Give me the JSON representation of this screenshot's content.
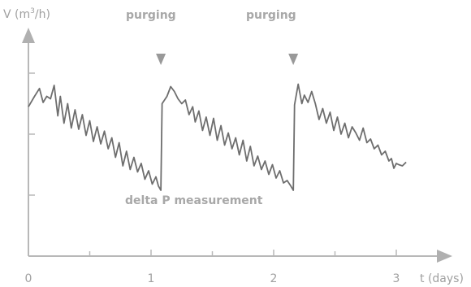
{
  "chart_data": {
    "type": "line",
    "title": "",
    "xlabel": "t (days)",
    "ylabel_prefix": "V (m",
    "ylabel_superscript": "3",
    "ylabel_suffix": "/h)",
    "xlim": [
      0,
      3.6
    ],
    "ylim": [
      0,
      4.3
    ],
    "x_ticks": [
      {
        "value": 0,
        "label": "0"
      },
      {
        "value": 1,
        "label": "1"
      },
      {
        "value": 2,
        "label": "2"
      },
      {
        "value": 3,
        "label": "3"
      }
    ],
    "x_minor_ticks": [
      0.5,
      1.5,
      2.5
    ],
    "y_ticks": [
      1,
      2,
      3
    ],
    "grid": false,
    "series": [
      {
        "values": [
          [
            0.0,
            2.45
          ],
          [
            0.05,
            2.62
          ],
          [
            0.09,
            2.75
          ],
          [
            0.12,
            2.52
          ],
          [
            0.15,
            2.62
          ],
          [
            0.18,
            2.58
          ],
          [
            0.21,
            2.8
          ],
          [
            0.24,
            2.3
          ],
          [
            0.26,
            2.62
          ],
          [
            0.29,
            2.18
          ],
          [
            0.32,
            2.5
          ],
          [
            0.35,
            2.1
          ],
          [
            0.38,
            2.4
          ],
          [
            0.41,
            2.08
          ],
          [
            0.44,
            2.32
          ],
          [
            0.47,
            1.98
          ],
          [
            0.5,
            2.22
          ],
          [
            0.53,
            1.88
          ],
          [
            0.56,
            2.12
          ],
          [
            0.59,
            1.84
          ],
          [
            0.62,
            2.05
          ],
          [
            0.65,
            1.76
          ],
          [
            0.68,
            1.94
          ],
          [
            0.71,
            1.62
          ],
          [
            0.74,
            1.86
          ],
          [
            0.77,
            1.48
          ],
          [
            0.8,
            1.72
          ],
          [
            0.83,
            1.42
          ],
          [
            0.86,
            1.62
          ],
          [
            0.89,
            1.38
          ],
          [
            0.92,
            1.52
          ],
          [
            0.95,
            1.26
          ],
          [
            0.98,
            1.4
          ],
          [
            1.01,
            1.18
          ],
          [
            1.04,
            1.3
          ],
          [
            1.06,
            1.15
          ],
          [
            1.08,
            1.08
          ],
          [
            1.09,
            2.5
          ],
          [
            1.13,
            2.62
          ],
          [
            1.16,
            2.78
          ],
          [
            1.19,
            2.7
          ],
          [
            1.22,
            2.58
          ],
          [
            1.25,
            2.5
          ],
          [
            1.28,
            2.56
          ],
          [
            1.31,
            2.32
          ],
          [
            1.34,
            2.45
          ],
          [
            1.36,
            2.2
          ],
          [
            1.39,
            2.38
          ],
          [
            1.42,
            2.06
          ],
          [
            1.45,
            2.28
          ],
          [
            1.48,
            1.98
          ],
          [
            1.51,
            2.26
          ],
          [
            1.54,
            1.9
          ],
          [
            1.57,
            2.14
          ],
          [
            1.6,
            1.82
          ],
          [
            1.63,
            2.02
          ],
          [
            1.66,
            1.76
          ],
          [
            1.69,
            1.94
          ],
          [
            1.72,
            1.66
          ],
          [
            1.75,
            1.9
          ],
          [
            1.78,
            1.56
          ],
          [
            1.81,
            1.8
          ],
          [
            1.84,
            1.48
          ],
          [
            1.87,
            1.64
          ],
          [
            1.9,
            1.42
          ],
          [
            1.93,
            1.56
          ],
          [
            1.96,
            1.34
          ],
          [
            1.99,
            1.5
          ],
          [
            2.02,
            1.28
          ],
          [
            2.05,
            1.4
          ],
          [
            2.08,
            1.2
          ],
          [
            2.11,
            1.24
          ],
          [
            2.14,
            1.15
          ],
          [
            2.16,
            1.08
          ],
          [
            2.17,
            2.48
          ],
          [
            2.2,
            2.82
          ],
          [
            2.23,
            2.5
          ],
          [
            2.25,
            2.64
          ],
          [
            2.28,
            2.52
          ],
          [
            2.31,
            2.7
          ],
          [
            2.34,
            2.5
          ],
          [
            2.37,
            2.24
          ],
          [
            2.4,
            2.42
          ],
          [
            2.43,
            2.18
          ],
          [
            2.46,
            2.36
          ],
          [
            2.49,
            2.06
          ],
          [
            2.52,
            2.28
          ],
          [
            2.55,
            2.0
          ],
          [
            2.58,
            2.18
          ],
          [
            2.61,
            1.94
          ],
          [
            2.64,
            2.12
          ],
          [
            2.67,
            2.02
          ],
          [
            2.7,
            1.9
          ],
          [
            2.73,
            2.1
          ],
          [
            2.76,
            1.86
          ],
          [
            2.79,
            1.92
          ],
          [
            2.82,
            1.76
          ],
          [
            2.85,
            1.82
          ],
          [
            2.88,
            1.66
          ],
          [
            2.91,
            1.72
          ],
          [
            2.94,
            1.56
          ],
          [
            2.96,
            1.6
          ],
          [
            2.98,
            1.44
          ],
          [
            3.0,
            1.52
          ],
          [
            3.02,
            1.5
          ],
          [
            3.05,
            1.48
          ],
          [
            3.08,
            1.54
          ]
        ]
      }
    ],
    "annotations": [
      {
        "text": "purging",
        "x": 1.08
      },
      {
        "text": "purging",
        "x": 2.16
      },
      {
        "text": "delta P measurement",
        "x": 2.0,
        "y": 0.72
      }
    ]
  },
  "colors": {
    "axis": "#b8b8b8",
    "line": "#6e6e6e",
    "marker": "#999999",
    "text": "#a0a0a0"
  }
}
